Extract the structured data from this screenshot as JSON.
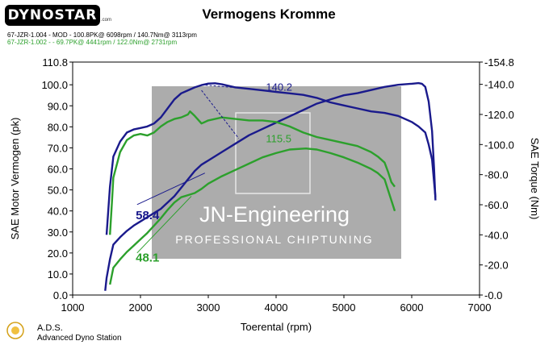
{
  "brand": "DYNOSTAR",
  "brand_suffix": ".com",
  "run_lines": [
    "67-JZR-1.004 - MOD - 100.8PK@ 6098rpm / 140.7Nm@ 3113rpm",
    "67-JZR-1.002 - - 69.7PK@ 4441rpm / 122.0Nm@ 2731rpm"
  ],
  "footer": {
    "name": "A.D.S.",
    "subtitle": "Advanced Dyno Station"
  },
  "watermark": {
    "line1": "JN-Engineering",
    "line2": "PROFESSIONAL CHIPTUNING"
  },
  "colors": {
    "mod": "#1a1a8c",
    "stock": "#2ca02c",
    "watermark_bg": "#a8a8a8"
  },
  "chart_data": {
    "type": "line",
    "title": "Vermogens Kromme",
    "xlabel": "Toerental (rpm)",
    "ylabel": "SAE Motor Vermogen (pk)",
    "y2label": "SAE Torque (Nm)",
    "xlim": [
      1000,
      7000
    ],
    "ylim": [
      0,
      110.8
    ],
    "y2lim": [
      0,
      154.8
    ],
    "x_ticks": [
      "1000",
      "2000",
      "3000",
      "4000",
      "5000",
      "6000",
      "7000"
    ],
    "y_ticks": [
      "0.0",
      "10.0",
      "20.0",
      "30.0",
      "40.0",
      "50.0",
      "60.0",
      "70.0",
      "80.0",
      "90.0",
      "100.0",
      "110.8"
    ],
    "y2_ticks": [
      "-0.0",
      "-20.0",
      "-40.0",
      "-60.0",
      "-80.0",
      "-100.0",
      "-120.0",
      "-140.0",
      "-154.8"
    ],
    "grid": false,
    "series": [
      {
        "name": "67-JZR-1.004 - MOD",
        "axis": "power",
        "color": "#1a1a8c",
        "x": [
          1480,
          1500,
          1550,
          1600,
          1700,
          1800,
          1900,
          2000,
          2100,
          2200,
          2300,
          2400,
          2500,
          2600,
          2700,
          2800,
          2900,
          3000,
          3200,
          3400,
          3600,
          3800,
          4000,
          4200,
          4400,
          4600,
          4800,
          5000,
          5200,
          5400,
          5600,
          5800,
          6000,
          6100,
          6150,
          6200,
          6250,
          6300,
          6330,
          6350
        ],
        "y": [
          2,
          8,
          17,
          24,
          27.5,
          30.5,
          33,
          35,
          37,
          39,
          41,
          44,
          47,
          51,
          55,
          59,
          62,
          64,
          68,
          72,
          76,
          79,
          82,
          85,
          88,
          91,
          93,
          95,
          96,
          97.5,
          99,
          100,
          100.5,
          100.8,
          100.5,
          99,
          92,
          78,
          60,
          45
        ]
      },
      {
        "name": "67-JZR-1.004 - MOD",
        "axis": "torque",
        "color": "#1a1a8c",
        "x": [
          1500,
          1550,
          1600,
          1700,
          1800,
          1900,
          2000,
          2100,
          2200,
          2300,
          2400,
          2500,
          2600,
          2700,
          2800,
          2900,
          3000,
          3100,
          3200,
          3400,
          3600,
          3800,
          4000,
          4200,
          4400,
          4600,
          4800,
          5000,
          5200,
          5400,
          5600,
          5800,
          6000,
          6100,
          6200,
          6250,
          6300,
          6330,
          6350
        ],
        "y": [
          40,
          72,
          92,
          102,
          108,
          110,
          111,
          112,
          114,
          118,
          124,
          130,
          134,
          136,
          138,
          139.5,
          140.5,
          140.7,
          140,
          138,
          137,
          136,
          135,
          134,
          133,
          131,
          128,
          126,
          124,
          122,
          121,
          119,
          115,
          112,
          108,
          100,
          90,
          75,
          65
        ]
      },
      {
        "name": "67-JZR-1.002",
        "axis": "power",
        "color": "#2ca02c",
        "x": [
          1550,
          1600,
          1700,
          1800,
          1900,
          2000,
          2100,
          2200,
          2300,
          2400,
          2500,
          2600,
          2700,
          2800,
          2900,
          3000,
          3200,
          3400,
          3600,
          3800,
          4000,
          4200,
          4441,
          4600,
          4800,
          5000,
          5200,
          5400,
          5500,
          5600,
          5650,
          5700,
          5750
        ],
        "y": [
          5,
          13,
          17,
          20.5,
          23.5,
          26.5,
          29.5,
          33,
          36.5,
          40.5,
          44,
          46.5,
          47.5,
          48.5,
          50.5,
          53,
          56.5,
          59.5,
          62.5,
          65.5,
          67.5,
          69.2,
          69.7,
          69.2,
          67.5,
          65.5,
          63,
          60,
          58,
          55,
          50,
          45,
          40
        ]
      },
      {
        "name": "67-JZR-1.002",
        "axis": "torque",
        "color": "#2ca02c",
        "x": [
          1550,
          1580,
          1600,
          1700,
          1800,
          1900,
          2000,
          2100,
          2200,
          2300,
          2400,
          2500,
          2600,
          2700,
          2731,
          2800,
          2900,
          3000,
          3200,
          3400,
          3600,
          3800,
          4000,
          4200,
          4400,
          4600,
          4800,
          5000,
          5200,
          5400,
          5500,
          5600,
          5650,
          5700,
          5750
        ],
        "y": [
          40,
          62,
          78,
          95,
          103,
          106,
          107,
          106,
          108,
          112,
          115,
          117,
          118,
          120,
          122,
          119,
          114,
          116,
          118,
          117,
          116,
          116,
          115,
          112,
          108,
          105,
          103,
          101,
          99,
          95,
          92,
          88,
          82,
          75,
          72
        ]
      }
    ],
    "annotations": [
      {
        "text": "140.2",
        "x": 3900,
        "y": 140.2,
        "axis": "torque",
        "color": "#1a1a8c"
      },
      {
        "text": "115.5",
        "x": 4000,
        "y": 115.5,
        "axis": "torque",
        "color": "#2ca02c"
      },
      {
        "text": "58.4",
        "x": 1900,
        "y": 58.4,
        "axis": "power",
        "color": "#1a1a8c"
      },
      {
        "text": "48.1",
        "x": 1900,
        "y": 48.1,
        "axis": "power",
        "color": "#2ca02c"
      }
    ]
  }
}
